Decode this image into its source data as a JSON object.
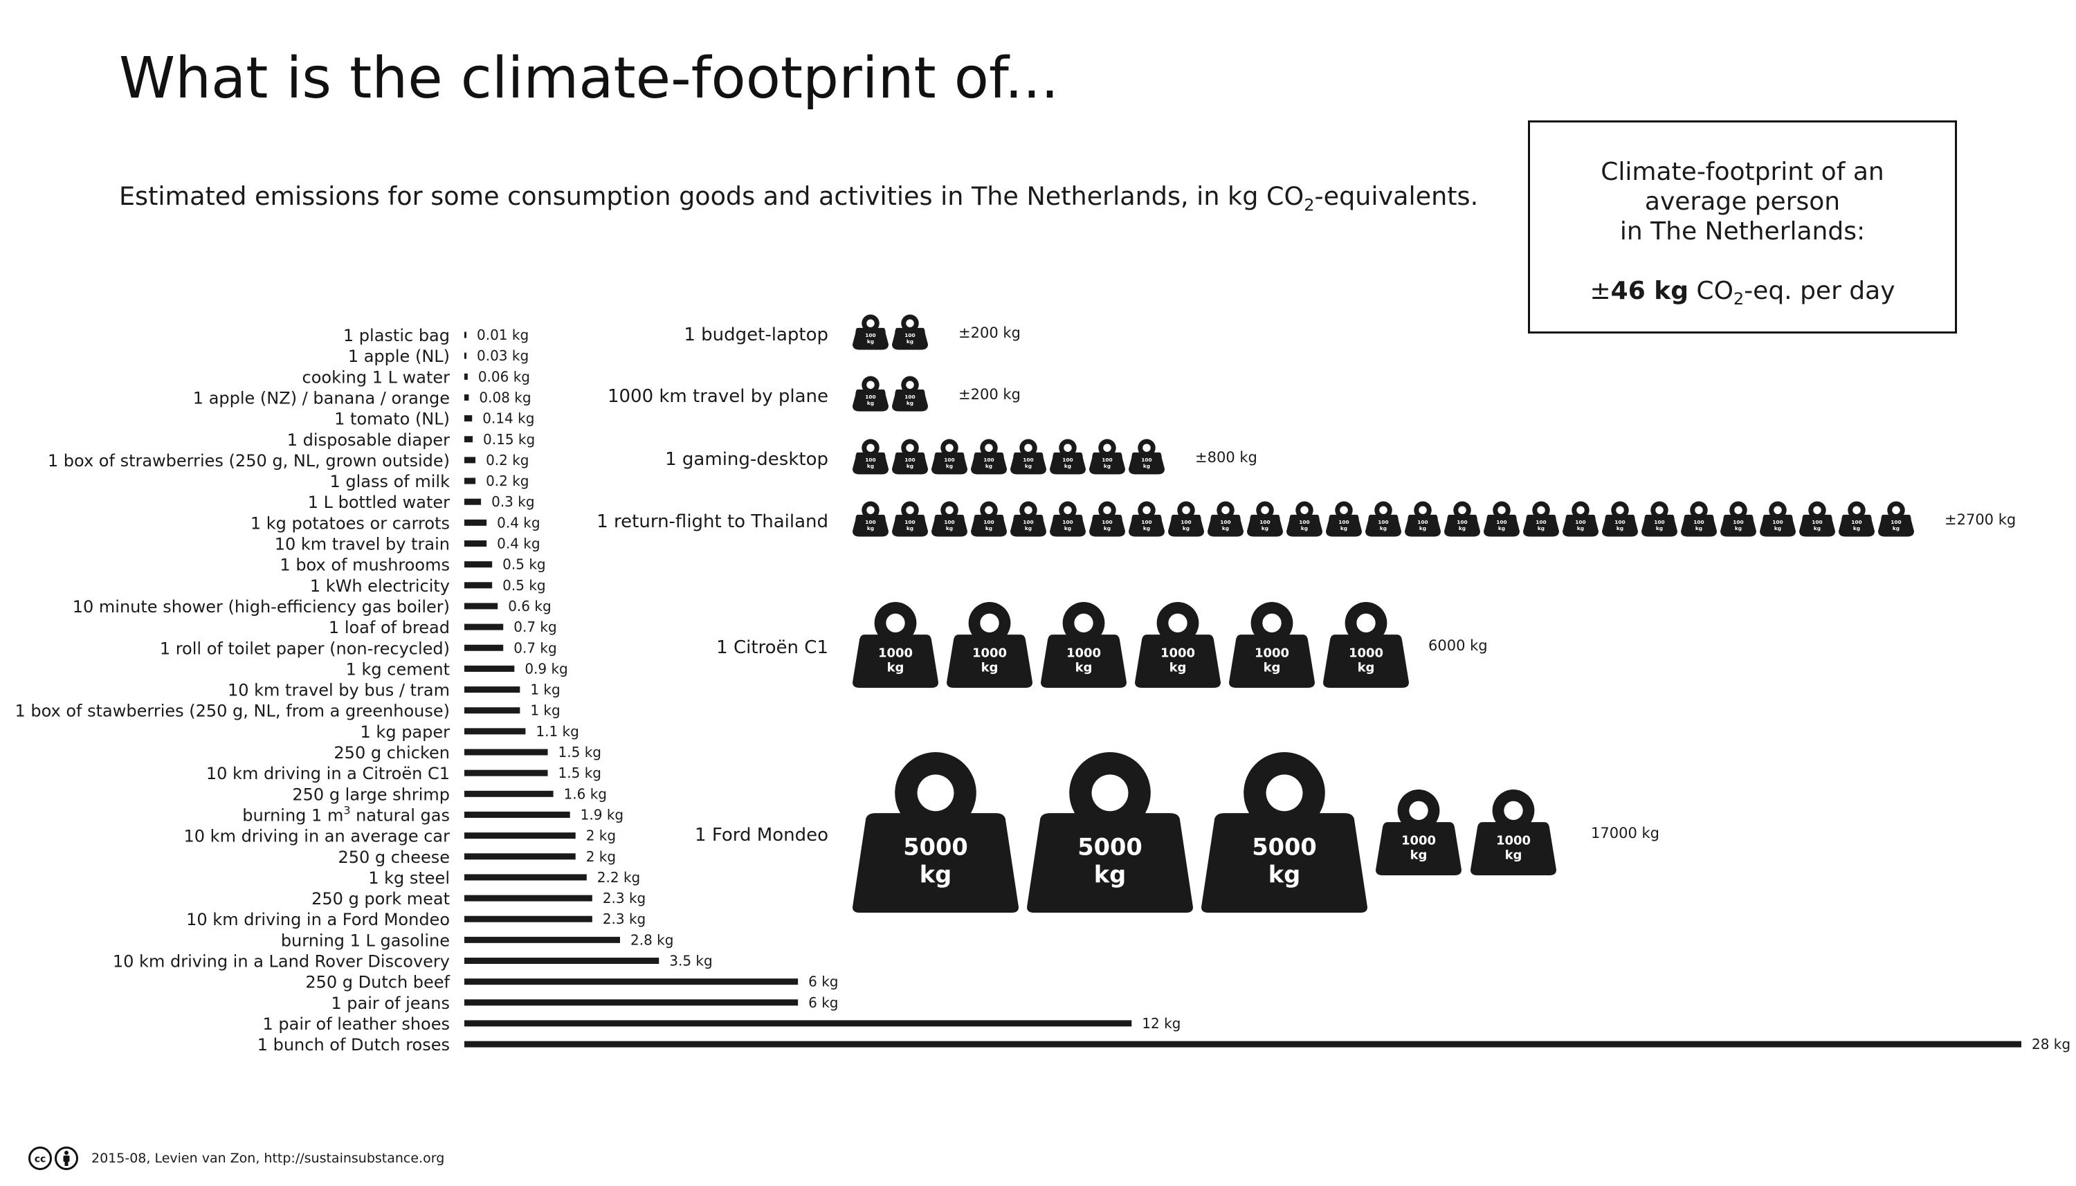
{
  "title": "What is the climate-footprint of...",
  "subtitle": {
    "before": "Estimated emissions for some consumption goods and activities in The Netherlands, in kg CO",
    "sub": "2",
    "after": "-equivalents."
  },
  "average_box": {
    "line1": "Climate-footprint of an",
    "line2": "average person",
    "line3": "in The Netherlands:",
    "prefix": "±",
    "amount": "46 kg",
    "co2": " CO",
    "sub": "2",
    "suffix": "-eq. per day"
  },
  "footer": {
    "credit": "2015-08, Levien van Zon, http://sustainsubstance.org",
    "license_icons": [
      "cc-icon",
      "attribution-icon"
    ]
  },
  "colors": {
    "ink": "#1a1a1a",
    "background": "#ffffff"
  },
  "chart_data": [
    {
      "type": "bar",
      "orientation": "horizontal",
      "unit": "kg",
      "categories": [
        "1 plastic bag",
        "1 apple (NL)",
        "cooking 1 L water",
        "1 apple (NZ) / banana / orange",
        "1 tomato (NL)",
        "1 disposable diaper",
        "1 box of strawberries (250 g, NL, grown outside)",
        "1 glass of milk",
        "1 L bottled water",
        "1 kg potatoes or carrots",
        "10 km travel by train",
        "1 box of mushrooms",
        "1 kWh electricity",
        "10 minute shower (high-efficiency gas boiler)",
        "1 loaf of bread",
        "1 roll of toilet paper (non-recycled)",
        "1 kg cement",
        "10 km travel by bus / tram",
        "1 box of stawberries (250 g, NL, from a greenhouse)",
        "1 kg paper",
        "250 g chicken",
        "10 km driving in a Citroën C1",
        "250 g large shrimp",
        "burning 1 m3 natural gas",
        "10 km driving in an average car",
        "250 g cheese",
        "1 kg steel",
        "250 g pork meat",
        "10 km driving in a Ford Mondeo",
        "burning 1 L gasoline",
        "10 km driving in a Land Rover Discovery",
        "250 g Dutch beef",
        "1 pair of jeans",
        "1 pair of leather shoes",
        "1 bunch of Dutch roses"
      ],
      "values": [
        0.01,
        0.03,
        0.06,
        0.08,
        0.14,
        0.15,
        0.2,
        0.2,
        0.3,
        0.4,
        0.4,
        0.5,
        0.5,
        0.6,
        0.7,
        0.7,
        0.9,
        1,
        1,
        1.1,
        1.5,
        1.5,
        1.6,
        1.9,
        2,
        2,
        2.2,
        2.3,
        2.3,
        2.8,
        3.5,
        6,
        6,
        12,
        28
      ],
      "labels": [
        "0.01 kg",
        "0.03 kg",
        "0.06 kg",
        "0.08 kg",
        "0.14 kg",
        "0.15 kg",
        "0.2 kg",
        "0.2 kg",
        "0.3 kg",
        "0.4 kg",
        "0.4 kg",
        "0.5 kg",
        "0.5 kg",
        "0.6 kg",
        "0.7 kg",
        "0.7 kg",
        "0.9 kg",
        "1 kg",
        "1 kg",
        "1.1 kg",
        "1.5 kg",
        "1.5 kg",
        "1.6 kg",
        "1.9 kg",
        "2 kg",
        "2 kg",
        "2.2 kg",
        "2.3 kg",
        "2.3 kg",
        "2.8 kg",
        "3.5 kg",
        "6 kg",
        "6 kg",
        "12 kg",
        "28 kg"
      ],
      "xlim": [
        0,
        28
      ],
      "grid": false,
      "legend": "none"
    },
    {
      "type": "pictogram",
      "unit": "kg",
      "items": [
        {
          "label": "1 budget-laptop",
          "total": 200,
          "total_label": "±200 kg",
          "weights": [
            100,
            100
          ]
        },
        {
          "label": "1000 km travel by plane",
          "total": 200,
          "total_label": "±200 kg",
          "weights": [
            100,
            100
          ]
        },
        {
          "label": "1 gaming-desktop",
          "total": 800,
          "total_label": "±800 kg",
          "weights": [
            100,
            100,
            100,
            100,
            100,
            100,
            100,
            100
          ]
        },
        {
          "label": "1 return-flight to Thailand",
          "total": 2700,
          "total_label": "±2700 kg",
          "weights": [
            100,
            100,
            100,
            100,
            100,
            100,
            100,
            100,
            100,
            100,
            100,
            100,
            100,
            100,
            100,
            100,
            100,
            100,
            100,
            100,
            100,
            100,
            100,
            100,
            100,
            100,
            100
          ]
        },
        {
          "label": "1 Citroën C1",
          "total": 6000,
          "total_label": "6000 kg",
          "weights": [
            1000,
            1000,
            1000,
            1000,
            1000,
            1000
          ]
        },
        {
          "label": "1 Ford Mondeo",
          "total": 17000,
          "total_label": "17000 kg",
          "weights": [
            5000,
            5000,
            5000,
            1000,
            1000
          ]
        }
      ],
      "weight_text": {
        "100": [
          "100",
          "kg"
        ],
        "1000": [
          "1000",
          "kg"
        ],
        "5000": [
          "5000",
          "kg"
        ]
      }
    }
  ]
}
